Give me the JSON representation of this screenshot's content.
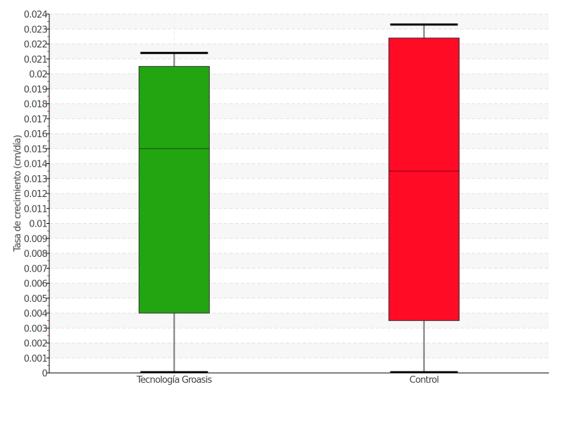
{
  "chart_data": {
    "type": "box",
    "title": "",
    "xlabel": "",
    "ylabel": "Tasa de crecimiento (cm/día)",
    "ylim": [
      0,
      0.024
    ],
    "ytick_step": 0.001,
    "yticks": [
      "0",
      "0.001",
      "0.002",
      "0.003",
      "0.004",
      "0.005",
      "0.006",
      "0.007",
      "0.008",
      "0.009",
      "0.01",
      "0.011",
      "0.012",
      "0.013",
      "0.014",
      "0.015",
      "0.016",
      "0.017",
      "0.018",
      "0.019",
      "0.02",
      "0.021",
      "0.022",
      "0.023",
      "0.024"
    ],
    "grid": true,
    "categories": [
      "Tecnología Groasis",
      "Control"
    ],
    "boxes": [
      {
        "category": "Tecnología Groasis",
        "min": 0,
        "q1": 0.004,
        "median": 0.015,
        "q3": 0.0205,
        "max": 0.0214,
        "color": "#22a511"
      },
      {
        "category": "Control",
        "min": 0,
        "q1": 0.0035,
        "median": 0.0135,
        "q3": 0.0224,
        "max": 0.0233,
        "color": "#ff0b26"
      }
    ]
  }
}
